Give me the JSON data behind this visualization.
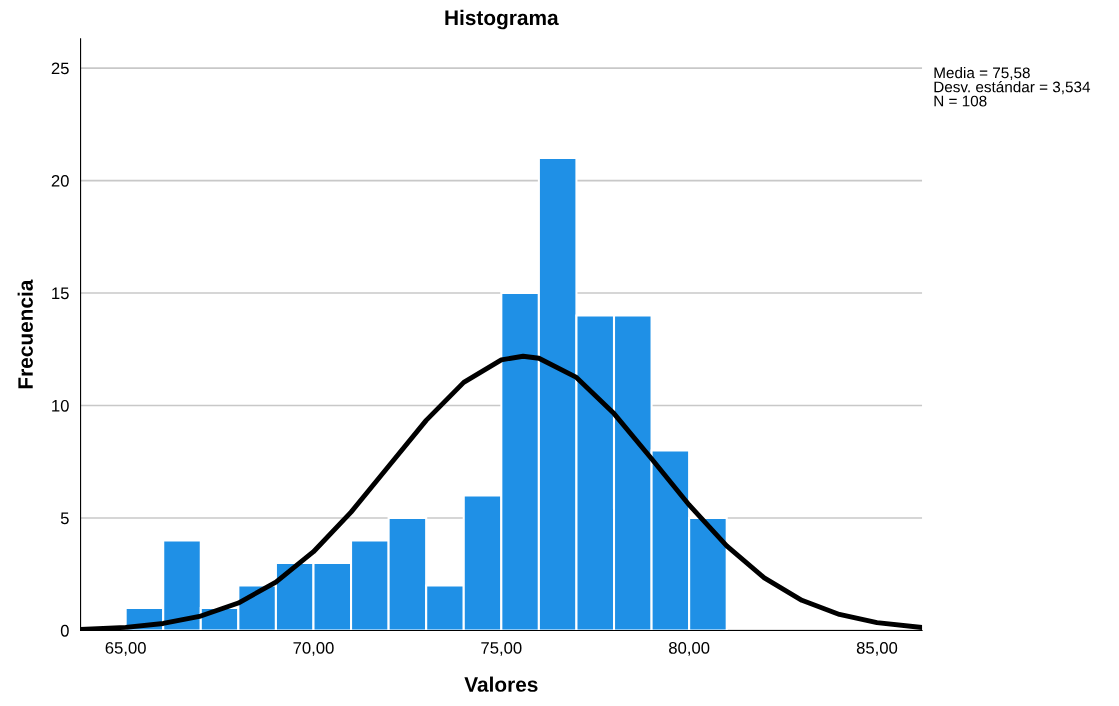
{
  "chart_data": {
    "type": "histogram",
    "title": "Histograma",
    "xlabel": "Valores",
    "ylabel": "Frecuencia",
    "bins": [
      65,
      66,
      67,
      68,
      69,
      70,
      71,
      72,
      73,
      74,
      75,
      76,
      77,
      78,
      79,
      80,
      81
    ],
    "values": [
      1,
      4,
      1,
      2,
      3,
      3,
      4,
      5,
      2,
      6,
      15,
      21,
      14,
      14,
      8,
      5
    ],
    "color": "#1f90e6",
    "series": [
      {
        "type": "line",
        "color": "#000000",
        "x": [
          63.8,
          65,
          66,
          67,
          68,
          69,
          70,
          71,
          72,
          73,
          74,
          75,
          75.58,
          76,
          77,
          78,
          79,
          80,
          81,
          82,
          83,
          84,
          85,
          86.2
        ],
        "values": [
          0.05,
          0.14,
          0.31,
          0.64,
          1.22,
          2.15,
          3.5,
          5.26,
          7.3,
          9.34,
          11.03,
          12.03,
          12.19,
          12.1,
          11.25,
          9.64,
          7.63,
          5.58,
          3.76,
          2.34,
          1.34,
          0.71,
          0.35,
          0.13
        ]
      }
    ],
    "xlim": [
      63.8,
      86.2
    ],
    "ylim": [
      0,
      26.3
    ],
    "xticks": [
      {
        "value": 65,
        "label": "65,00"
      },
      {
        "value": 70,
        "label": "70,00"
      },
      {
        "value": 75,
        "label": "75,00"
      },
      {
        "value": 80,
        "label": "80,00"
      },
      {
        "value": 85,
        "label": "85,00"
      }
    ],
    "yticks": [
      0,
      5,
      10,
      15,
      20,
      25
    ],
    "grid": "y",
    "legend": false,
    "annotations": [
      "Media = 75,58",
      "Desv. estándar = 3,534",
      "N = 108"
    ]
  }
}
